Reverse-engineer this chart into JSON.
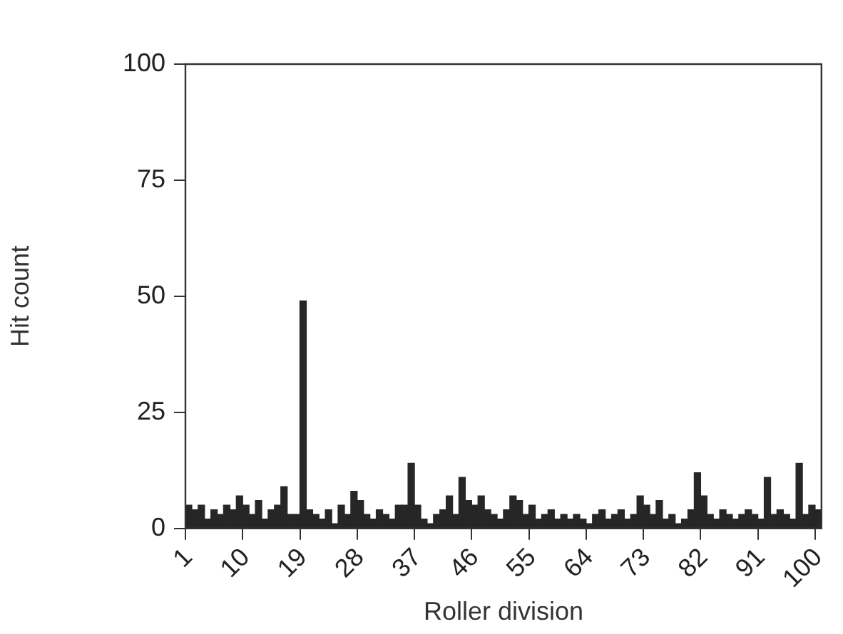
{
  "chart_data": {
    "type": "bar",
    "xlabel": "Roller division",
    "ylabel": "Hit count",
    "categories": [
      "1",
      null,
      null,
      null,
      null,
      null,
      null,
      null,
      null,
      "10",
      null,
      null,
      null,
      null,
      null,
      null,
      null,
      null,
      "19",
      null,
      null,
      null,
      null,
      null,
      null,
      null,
      null,
      "28",
      null,
      null,
      null,
      null,
      null,
      null,
      null,
      null,
      "37",
      null,
      null,
      null,
      null,
      null,
      null,
      null,
      null,
      "46",
      null,
      null,
      null,
      null,
      null,
      null,
      null,
      null,
      "55",
      null,
      null,
      null,
      null,
      null,
      null,
      null,
      null,
      "64",
      null,
      null,
      null,
      null,
      null,
      null,
      null,
      null,
      "73",
      null,
      null,
      null,
      null,
      null,
      null,
      null,
      null,
      "82",
      null,
      null,
      null,
      null,
      null,
      null,
      null,
      null,
      "91",
      null,
      null,
      null,
      null,
      null,
      null,
      null,
      null,
      "100"
    ],
    "values": [
      5,
      4,
      5,
      2,
      4,
      3,
      5,
      4,
      7,
      5,
      3,
      6,
      2,
      4,
      5,
      9,
      3,
      3,
      49,
      4,
      3,
      2,
      4,
      1,
      5,
      3,
      8,
      6,
      3,
      2,
      4,
      3,
      2,
      5,
      5,
      14,
      5,
      2,
      1,
      3,
      4,
      7,
      3,
      11,
      6,
      5,
      7,
      4,
      3,
      2,
      4,
      7,
      6,
      3,
      5,
      2,
      3,
      4,
      2,
      3,
      2,
      3,
      2,
      1,
      3,
      4,
      2,
      3,
      4,
      2,
      3,
      7,
      5,
      3,
      6,
      2,
      3,
      1,
      2,
      4,
      12,
      7,
      3,
      2,
      4,
      3,
      2,
      3,
      4,
      3,
      2,
      11,
      3,
      4,
      3,
      2,
      14,
      3,
      5,
      4
    ],
    "color": "#262626",
    "ylim": [
      0,
      100
    ],
    "yticks": [
      0,
      25,
      50,
      75,
      100
    ]
  }
}
